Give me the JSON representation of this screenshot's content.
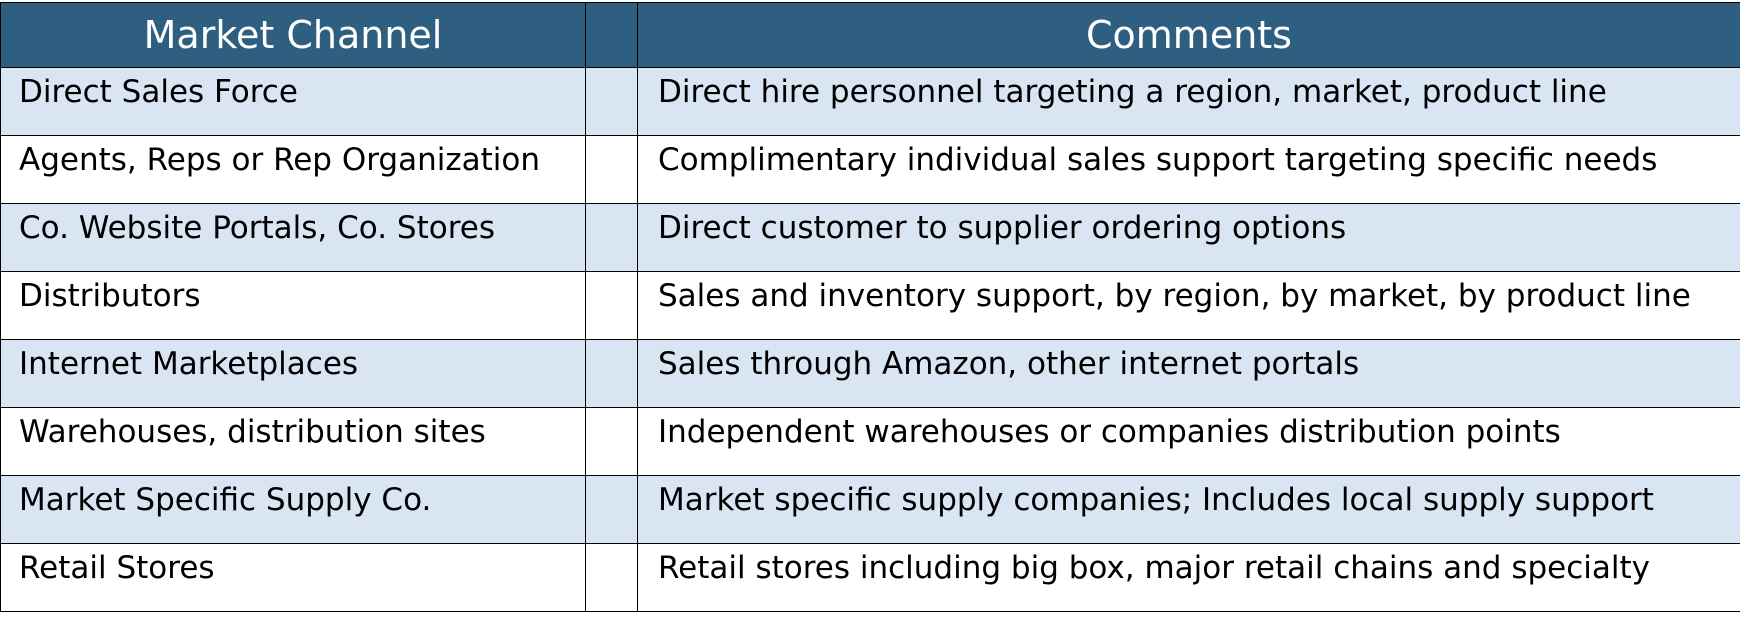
{
  "table": {
    "header": [
      "Market Channel",
      "Comments"
    ],
    "rows": [
      [
        "Direct Sales Force",
        "Direct hire personnel targeting a region, market, product line"
      ],
      [
        "Agents, Reps or Rep Organization",
        "Complimentary individual sales support targeting specific needs"
      ],
      [
        "Co. Website Portals, Co. Stores",
        "Direct customer to supplier ordering options"
      ],
      [
        "Distributors",
        "Sales and inventory support, by region, by market, by product line"
      ],
      [
        "Internet Marketplaces",
        "Sales through Amazon, other internet portals"
      ],
      [
        "Warehouses, distribution sites",
        "Independent warehouses or companies distribution points"
      ],
      [
        "Market Specific Supply Co.",
        "Market specific supply companies; Includes local supply support"
      ],
      [
        "Retail Stores",
        "Retail stores including big box, major retail chains and specialty"
      ]
    ]
  }
}
